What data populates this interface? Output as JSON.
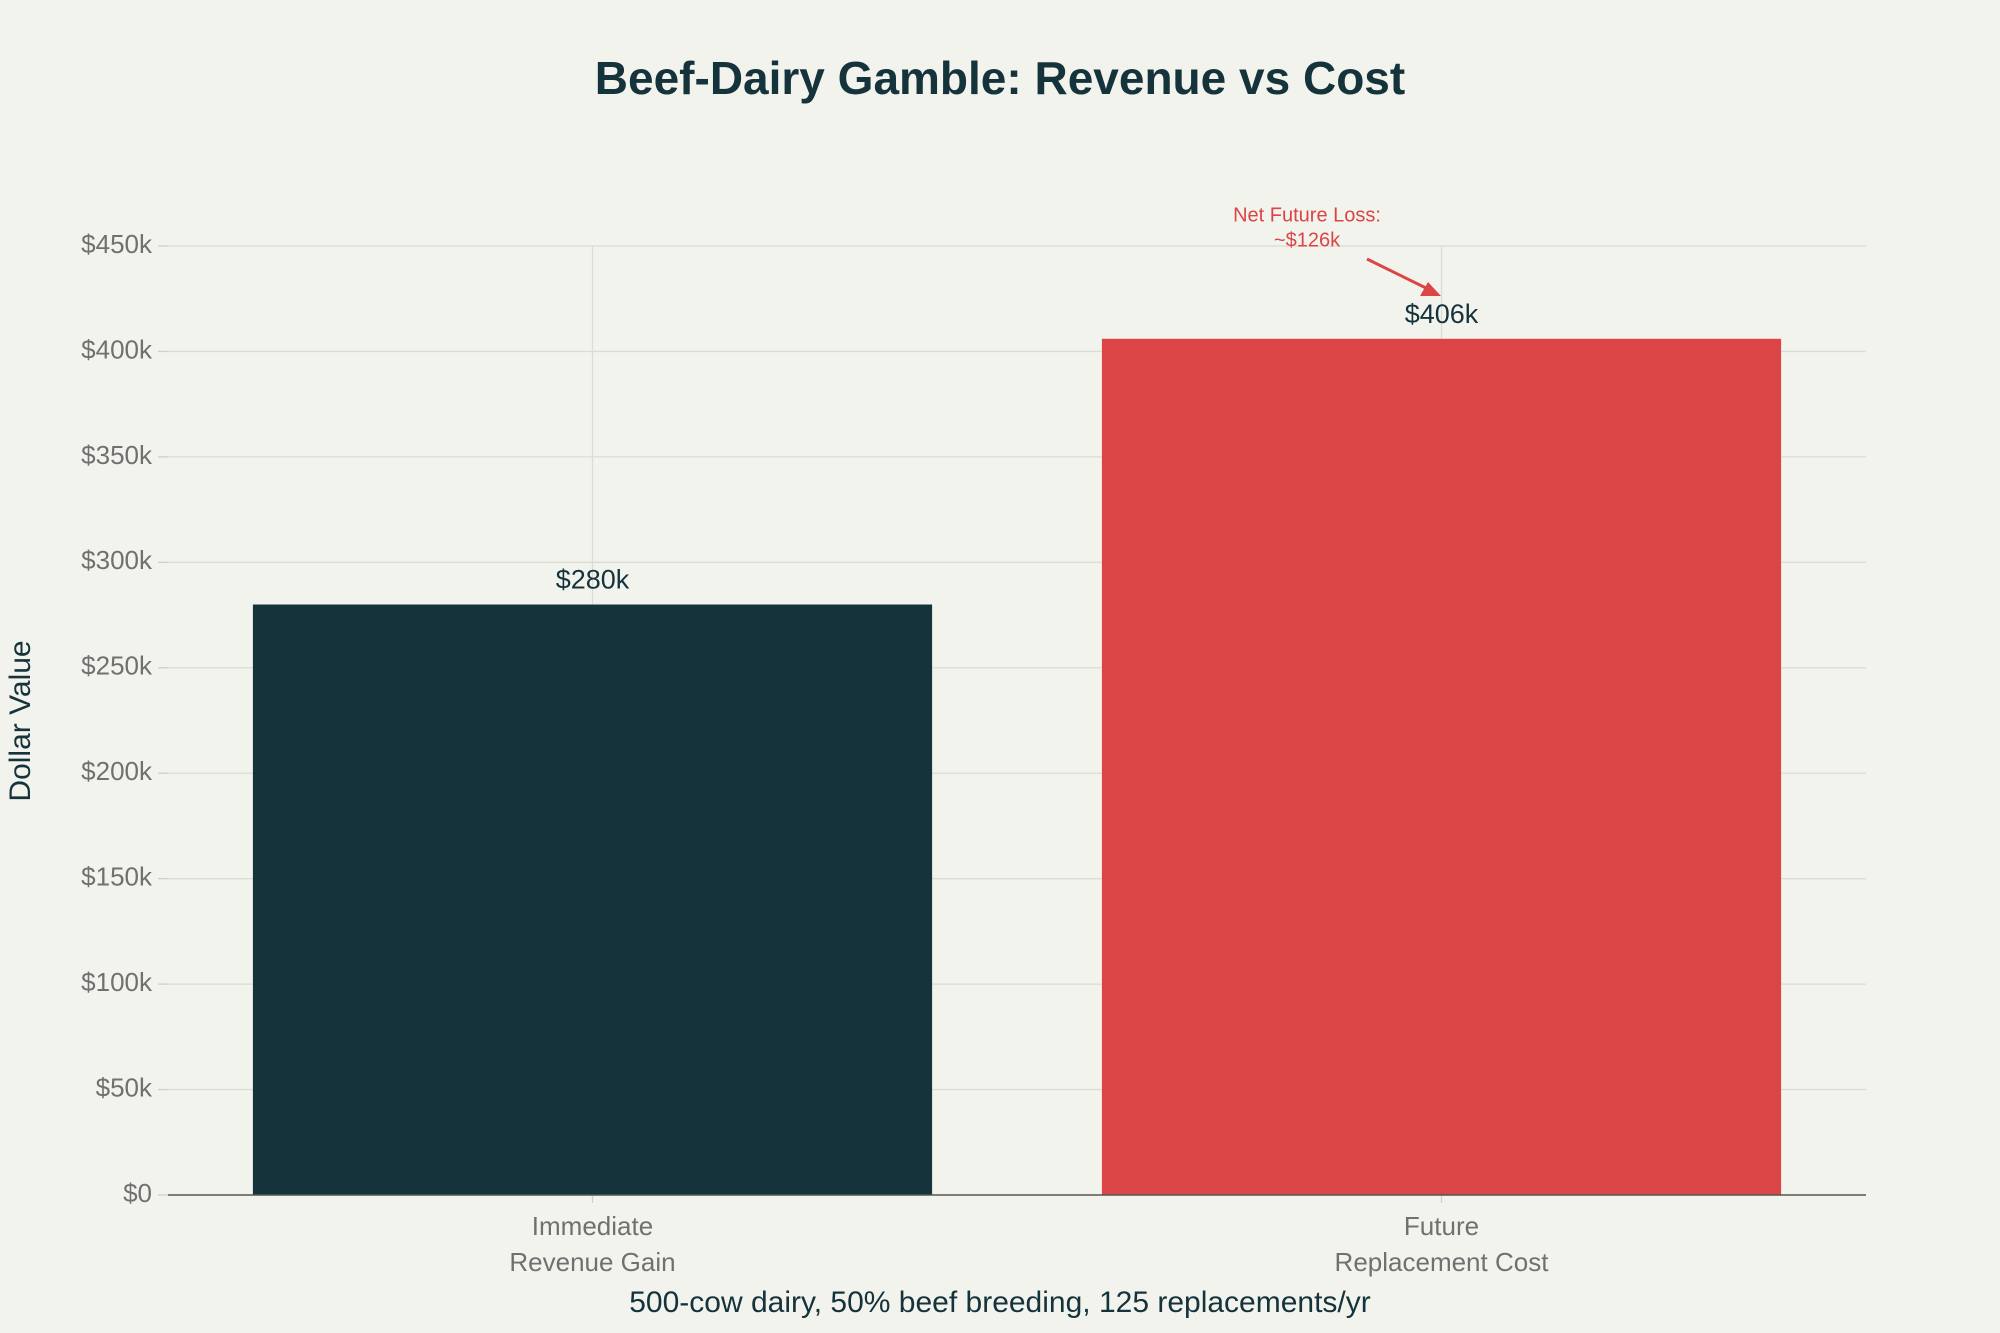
{
  "chart_data": {
    "type": "bar",
    "title": "Beef-Dairy Gamble: Revenue vs Cost",
    "x_label": "500-cow dairy, 50% beef breeding, 125 replacements/yr",
    "y_label": "Dollar Value",
    "categories": [
      [
        "Immediate",
        "Revenue Gain"
      ],
      [
        "Future",
        "Replacement Cost"
      ]
    ],
    "values": [
      280000,
      406000
    ],
    "value_labels": [
      "$280k",
      "$406k"
    ],
    "colors": [
      "#15333b",
      "#db4545"
    ],
    "annotation": [
      "Net Future Loss:",
      "~$126k"
    ],
    "ylim": [
      0,
      450000
    ],
    "yticks": [
      {
        "value": 0,
        "label": "$0"
      },
      {
        "value": 50000,
        "label": "$50k"
      },
      {
        "value": 100000,
        "label": "$100k"
      },
      {
        "value": 150000,
        "label": "$150k"
      },
      {
        "value": 200000,
        "label": "$200k"
      },
      {
        "value": 250000,
        "label": "$250k"
      },
      {
        "value": 300000,
        "label": "$300k"
      },
      {
        "value": 350000,
        "label": "$350k"
      },
      {
        "value": 400000,
        "label": "$400k"
      },
      {
        "value": 450000,
        "label": "$450k"
      }
    ],
    "grid": true
  }
}
